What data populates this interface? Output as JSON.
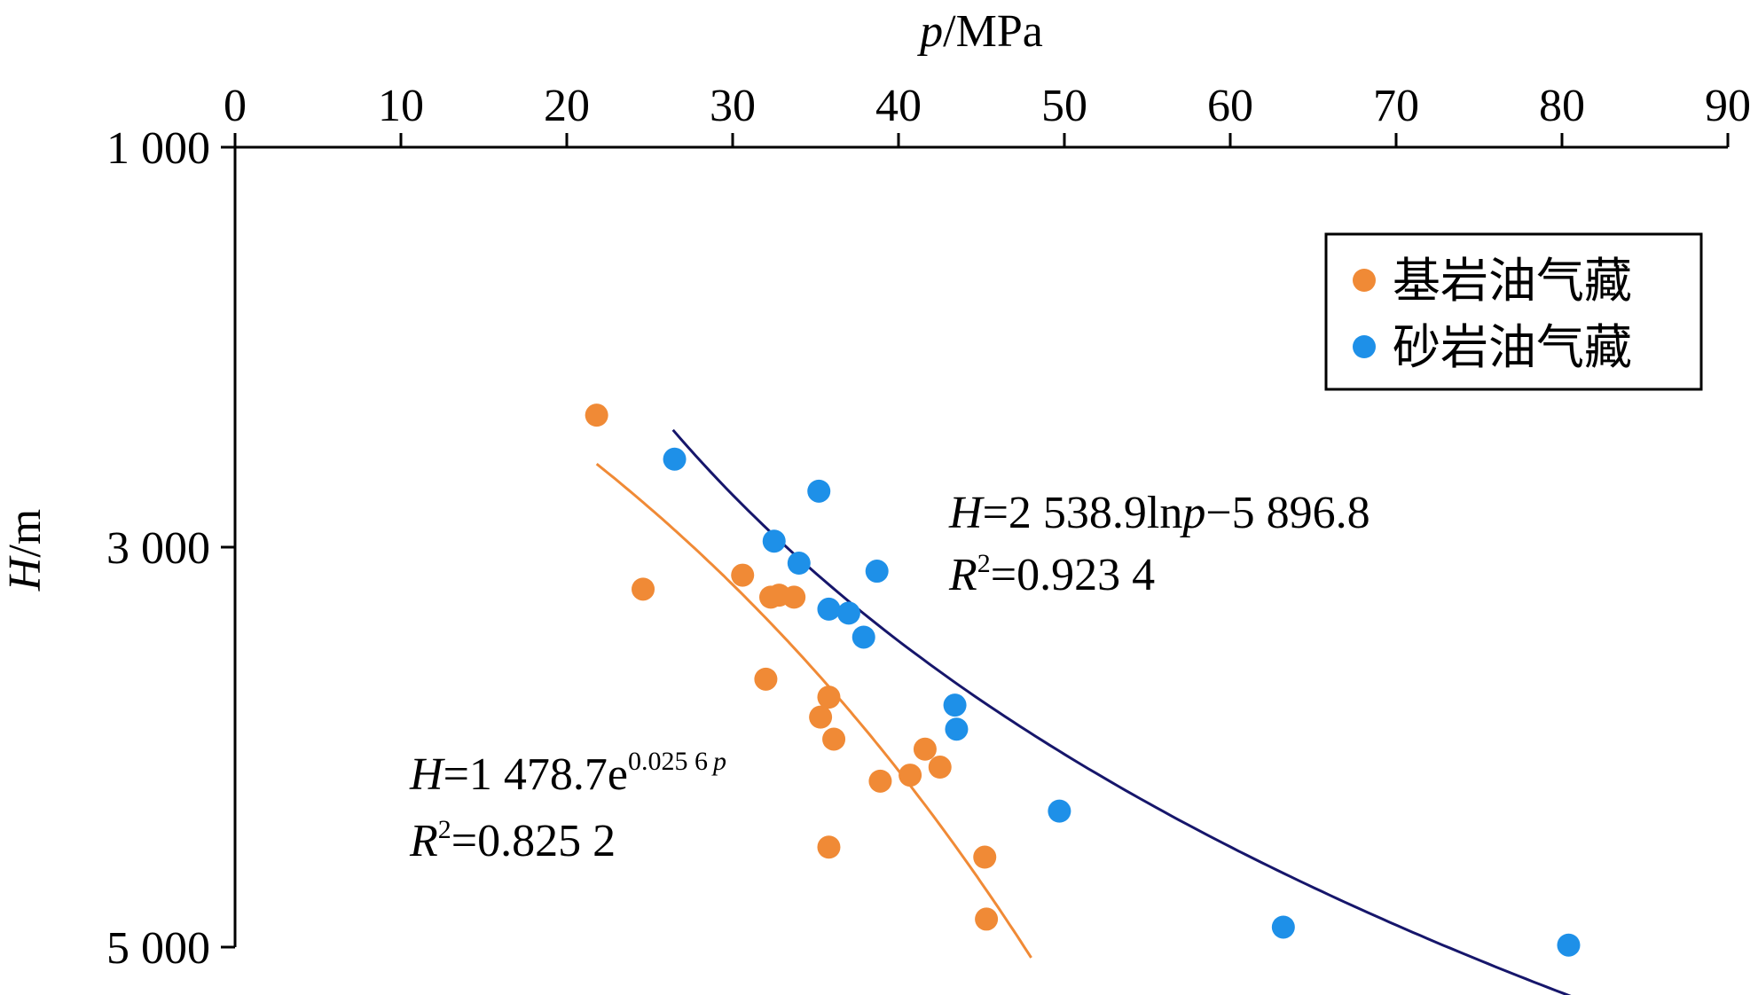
{
  "chart_data": {
    "type": "scatter",
    "x_axis": {
      "label_italic": "p",
      "label_unit": "/MPa",
      "position": "top",
      "range": [
        0,
        90
      ],
      "ticks": [
        0,
        10,
        20,
        30,
        40,
        50,
        60,
        70,
        80,
        90
      ],
      "tick_labels": [
        "0",
        "10",
        "20",
        "30",
        "40",
        "50",
        "60",
        "70",
        "80",
        "90"
      ]
    },
    "y_axis": {
      "label_italic": "H",
      "label_unit": "/m",
      "inverted": true,
      "range": [
        1000,
        5000
      ],
      "ticks": [
        1000,
        3000,
        5000
      ],
      "tick_labels": [
        "1 000",
        "3 000",
        "5 000"
      ]
    },
    "legend": {
      "placement": "top-right",
      "entries": [
        "基岩油气藏",
        "砂岩油气藏"
      ]
    },
    "series": [
      {
        "name": "基岩油气藏",
        "color": "#F08A36",
        "points": [
          [
            21.8,
            2340
          ],
          [
            24.6,
            3210
          ],
          [
            30.6,
            3140
          ],
          [
            32.3,
            3250
          ],
          [
            32.8,
            3240
          ],
          [
            33.7,
            3250
          ],
          [
            32.0,
            3660
          ],
          [
            35.3,
            3850
          ],
          [
            35.8,
            3750
          ],
          [
            36.1,
            3960
          ],
          [
            41.6,
            4010
          ],
          [
            42.5,
            4100
          ],
          [
            40.7,
            4140
          ],
          [
            38.9,
            4170
          ],
          [
            35.8,
            4500
          ],
          [
            45.2,
            4550
          ],
          [
            45.3,
            4860
          ]
        ],
        "fit": {
          "equation_lhs": "H",
          "equation_mid": "=1 478.7e",
          "exponent": "0.025 6",
          "exponent_var": "p",
          "r2_label": "R",
          "r2_sup": "2",
          "r2_value": "=0.825 2",
          "a": 1478.7,
          "b": 0.0256,
          "p_range": [
            21.8,
            48.0
          ]
        }
      },
      {
        "name": "砂岩油气藏",
        "color": "#1E90E8",
        "points": [
          [
            26.5,
            2560
          ],
          [
            35.2,
            2720
          ],
          [
            32.5,
            2970
          ],
          [
            34.0,
            3080
          ],
          [
            38.7,
            3120
          ],
          [
            35.8,
            3310
          ],
          [
            37.0,
            3330
          ],
          [
            37.9,
            3450
          ],
          [
            43.4,
            3790
          ],
          [
            43.5,
            3910
          ],
          [
            49.7,
            4320
          ],
          [
            63.2,
            4900
          ],
          [
            80.4,
            4990
          ]
        ],
        "fit": {
          "equation_lhs": "H",
          "equation_mid": "=2 538.9ln",
          "equation_var": "p",
          "equation_tail": "−5 896.8",
          "r2_label": "R",
          "r2_sup": "2",
          "r2_value": "=0.923 4",
          "a": 2538.9,
          "b": -5896.8,
          "p_range": [
            26.4,
            81.0
          ]
        }
      }
    ]
  }
}
